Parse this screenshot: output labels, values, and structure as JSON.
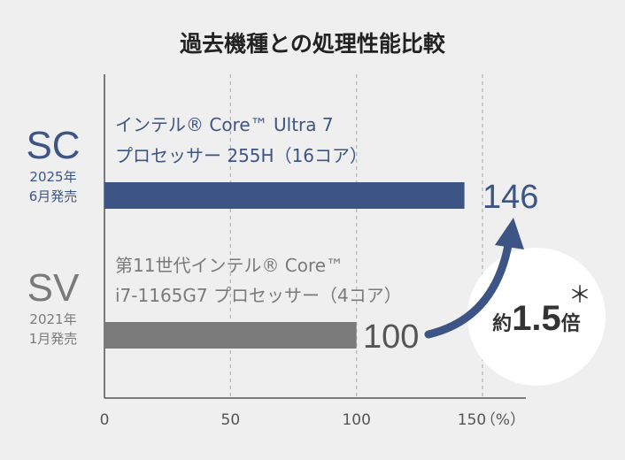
{
  "colors": {
    "sc": "#3d5585",
    "sv": "#7a7a7a",
    "axis": "#555555",
    "grid": "#bcbcbc",
    "background": "#efefef",
    "circle": "#ffffff"
  },
  "chart_data": {
    "type": "bar",
    "orientation": "horizontal",
    "title": "過去機種との処理性能比較",
    "xlim": [
      0,
      150
    ],
    "xticks": [
      0,
      50,
      100,
      150
    ],
    "xunit": "（%）",
    "grid": true,
    "categories": [
      {
        "tier": "SC",
        "release_line1": "2025年",
        "release_line2": "6月発売",
        "desc_line1": "インテル® Core™ Ultra 7",
        "desc_line2": "プロセッサー 255H（16コア）",
        "value": 146,
        "value_label": "146"
      },
      {
        "tier": "SV",
        "release_line1": "2021年",
        "release_line2": "1月発売",
        "desc_line1": "第11世代インテル® Core™",
        "desc_line2": "i7-1165G7 プロセッサー（4コア）",
        "value": 100,
        "value_label": "100"
      }
    ],
    "annotation": {
      "prefix": "約",
      "number": "1.5",
      "suffix": "倍",
      "mark": "＊"
    }
  }
}
